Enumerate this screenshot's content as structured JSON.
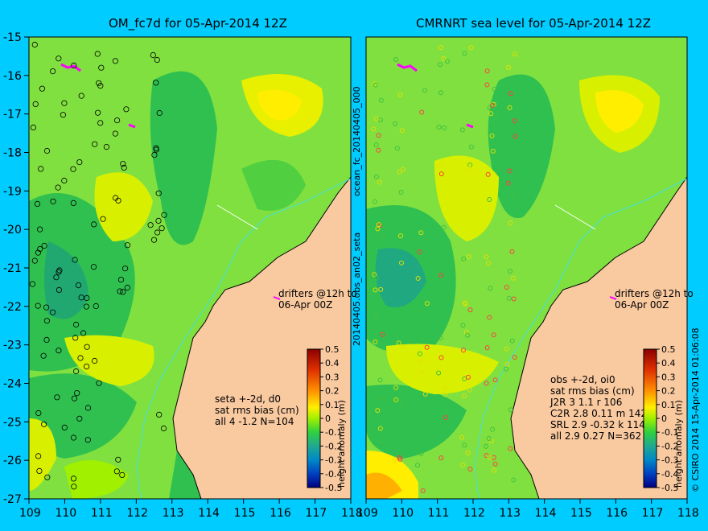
{
  "panels": [
    {
      "id": "left",
      "title": "OM_fc7d for 05-Apr-2014 12Z",
      "drifter_note": [
        "drifters @12h to",
        "06-Apr 00Z"
      ],
      "stats": [
        "seta +-2d, d0",
        "sat rms bias (cm)",
        "all 4 -1.2 N=104"
      ]
    },
    {
      "id": "right",
      "title": "CMRNRT sea level  for 05-Apr-2014 12Z",
      "drifter_note": [
        "drifters @12h to",
        "06-Apr 00Z"
      ],
      "stats": [
        "obs +-2d, oi0",
        "sat rms bias (cm)",
        "J2R   3 1.1 r 106",
        "C2R   2.8 0.11 m 142",
        "SRL   2.9 -0.32 k 114",
        "all   2.9 0.27 N=362"
      ]
    }
  ],
  "axes": {
    "lat_ticks": [
      "-15",
      "-16",
      "-17",
      "-18",
      "-19",
      "-20",
      "-21",
      "-22",
      "-23",
      "-24",
      "-25",
      "-26",
      "-27"
    ],
    "lon_ticks": [
      "109",
      "110",
      "111",
      "112",
      "113",
      "114",
      "115",
      "116",
      "117",
      "118"
    ],
    "lon_range": [
      109,
      118
    ],
    "lat_range": [
      -15,
      -27
    ]
  },
  "colorbar": {
    "label": "height anomaly (m)",
    "ticks": [
      "0.5",
      "0.4",
      "0.3",
      "0.2",
      "0.1",
      "0",
      "-0.1",
      "-0.2",
      "-0.3",
      "-0.4",
      "-0.5"
    ],
    "colors": [
      "#8b0000",
      "#d62000",
      "#ff6a00",
      "#ffb000",
      "#ffff00",
      "#a0f000",
      "#30d040",
      "#20a880",
      "#0080c0",
      "#0040c0",
      "#000080"
    ]
  },
  "side_labels": {
    "middle": "20140405.obs_an02_seta",
    "middle_top": "ocean_fc_20140405_000",
    "right_edge": "© CSIRO 2014  15-Apr-2014 01:06:08"
  },
  "colors": {
    "background": "#00ccff",
    "land": "#f9c9a0",
    "ocean_base": "#80e040",
    "drifter": "#ff00ff"
  }
}
